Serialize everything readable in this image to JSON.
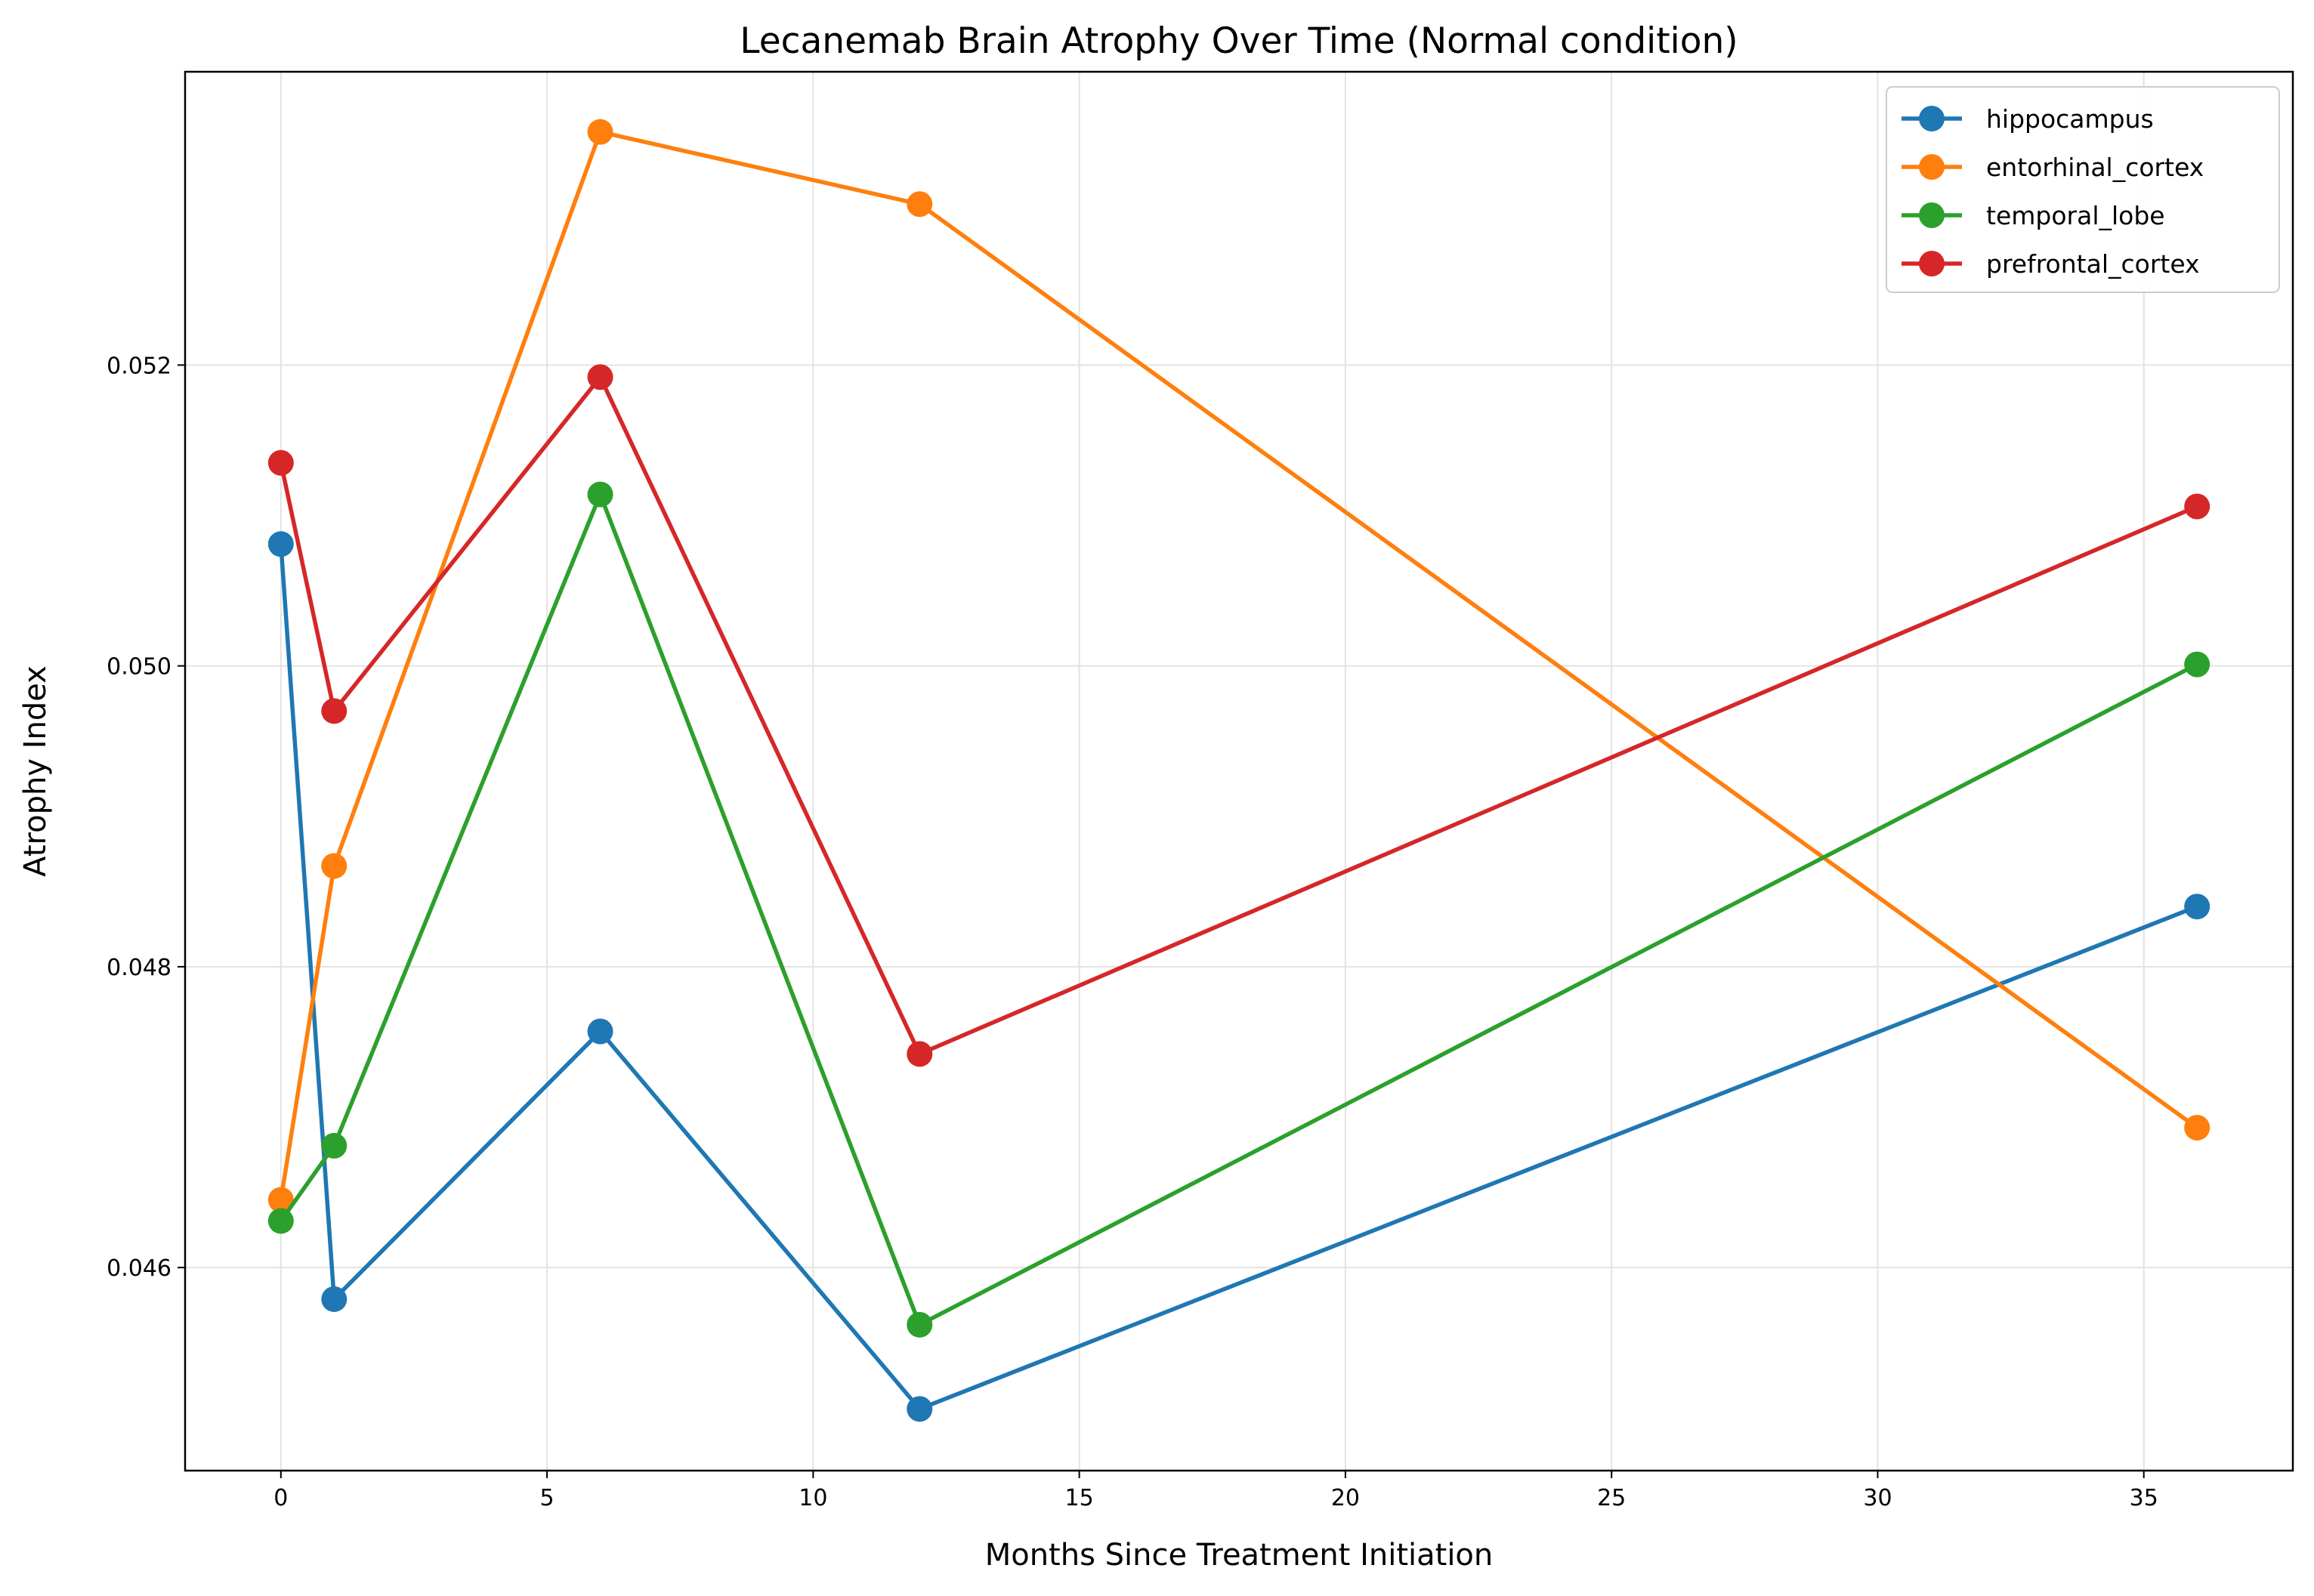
{
  "chart_data": {
    "type": "line",
    "title": "Lecanemab Brain Atrophy Over Time (Normal condition)",
    "xlabel": "Months Since Treatment Initiation",
    "ylabel": "Atrophy Index",
    "xlim": [
      -1.8,
      37.8
    ],
    "ylim": [
      0.04465,
      0.05395
    ],
    "xticks": [
      0,
      5,
      10,
      15,
      20,
      25,
      30,
      35
    ],
    "yticks": [
      0.046,
      0.048,
      0.05,
      0.052
    ],
    "xtick_labels": [
      "0",
      "5",
      "10",
      "15",
      "20",
      "25",
      "30",
      "35"
    ],
    "ytick_labels": [
      "0.046",
      "0.048",
      "0.050",
      "0.052"
    ],
    "grid": true,
    "legend_position": "top-right",
    "x": [
      0,
      1,
      6,
      12,
      36
    ],
    "series": [
      {
        "name": "hippocampus",
        "color": "#1f77b4",
        "values": [
          0.05081,
          0.04579,
          0.04757,
          0.04506,
          0.0484
        ]
      },
      {
        "name": "entorhinal_cortex",
        "color": "#ff7f0e",
        "values": [
          0.04645,
          0.04867,
          0.05355,
          0.05307,
          0.04693
        ]
      },
      {
        "name": "temporal_lobe",
        "color": "#2ca02c",
        "values": [
          0.04631,
          0.04681,
          0.05114,
          0.04562,
          0.05001
        ]
      },
      {
        "name": "prefrontal_cortex",
        "color": "#d62728",
        "values": [
          0.05135,
          0.0497,
          0.05192,
          0.04742,
          0.05106
        ]
      }
    ]
  }
}
